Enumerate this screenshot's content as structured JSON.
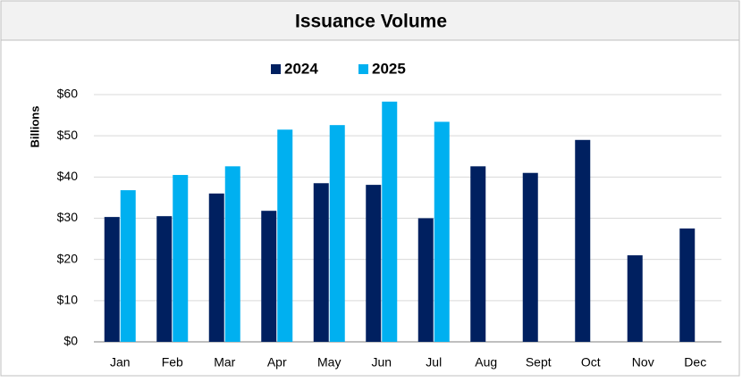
{
  "chart_data": {
    "type": "bar",
    "title": "Issuance Volume",
    "y_label": "Billions",
    "categories": [
      "Jan",
      "Feb",
      "Mar",
      "Apr",
      "May",
      "Jun",
      "Jul",
      "Aug",
      "Sept",
      "Oct",
      "Nov",
      "Dec"
    ],
    "series": [
      {
        "name": "2024",
        "color": "#002060",
        "values": [
          30.3,
          30.5,
          36,
          31.8,
          38.5,
          38.1,
          30,
          42.6,
          41,
          49,
          21,
          27.5
        ]
      },
      {
        "name": "2025",
        "color": "#00b0f0",
        "values": [
          36.8,
          40.5,
          42.6,
          51.5,
          52.6,
          58.3,
          53.4,
          null,
          null,
          null,
          null,
          null
        ]
      }
    ],
    "ylim": [
      0,
      60
    ],
    "yticks": [
      {
        "value": 0,
        "label": "$0"
      },
      {
        "value": 10,
        "label": "$10"
      },
      {
        "value": 20,
        "label": "$20"
      },
      {
        "value": 30,
        "label": "$30"
      },
      {
        "value": 40,
        "label": "$40"
      },
      {
        "value": 50,
        "label": "$50"
      },
      {
        "value": 60,
        "label": "$60"
      }
    ],
    "grid": true,
    "legend": "top"
  }
}
